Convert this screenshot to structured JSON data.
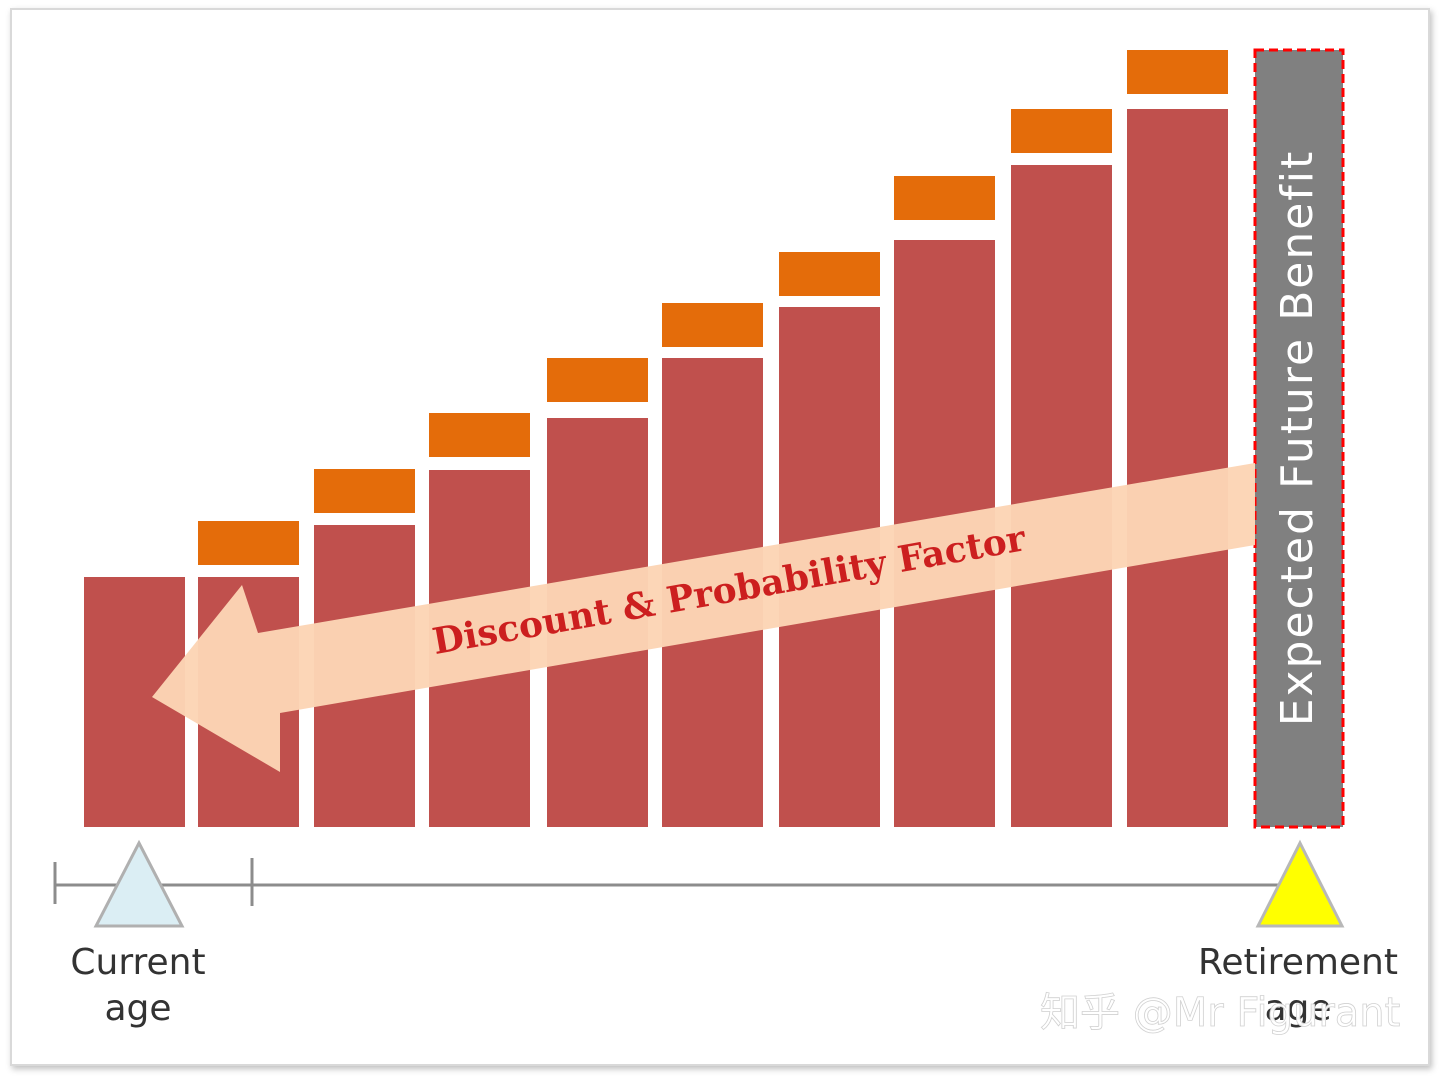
{
  "diagram": {
    "periods": 10,
    "step_pattern": "accumulated benefit grows each period; an increment block sits on top of each bar from the second bar onward",
    "colors": {
      "bar": "#c0504d",
      "increment": "#e46c0a",
      "efb_box": "#808080",
      "efb_border": "#ff0000",
      "arrow_fill": "#fcd5b5",
      "arrow_text": "#cc1f1f",
      "timeline": "#8c8c8c",
      "current_marker": "#dbeef4",
      "retirement_marker": "#ffff00"
    }
  },
  "labels": {
    "expected_future_benefit": "Expected Future Benefit",
    "arrow_text": "Discount & Probability Factor",
    "current_age_line1": "Current",
    "current_age_line2": "age",
    "retirement_line1": "Retirement",
    "retirement_line2": "age"
  },
  "watermark": {
    "text": "知乎 @Mr Figurant"
  }
}
